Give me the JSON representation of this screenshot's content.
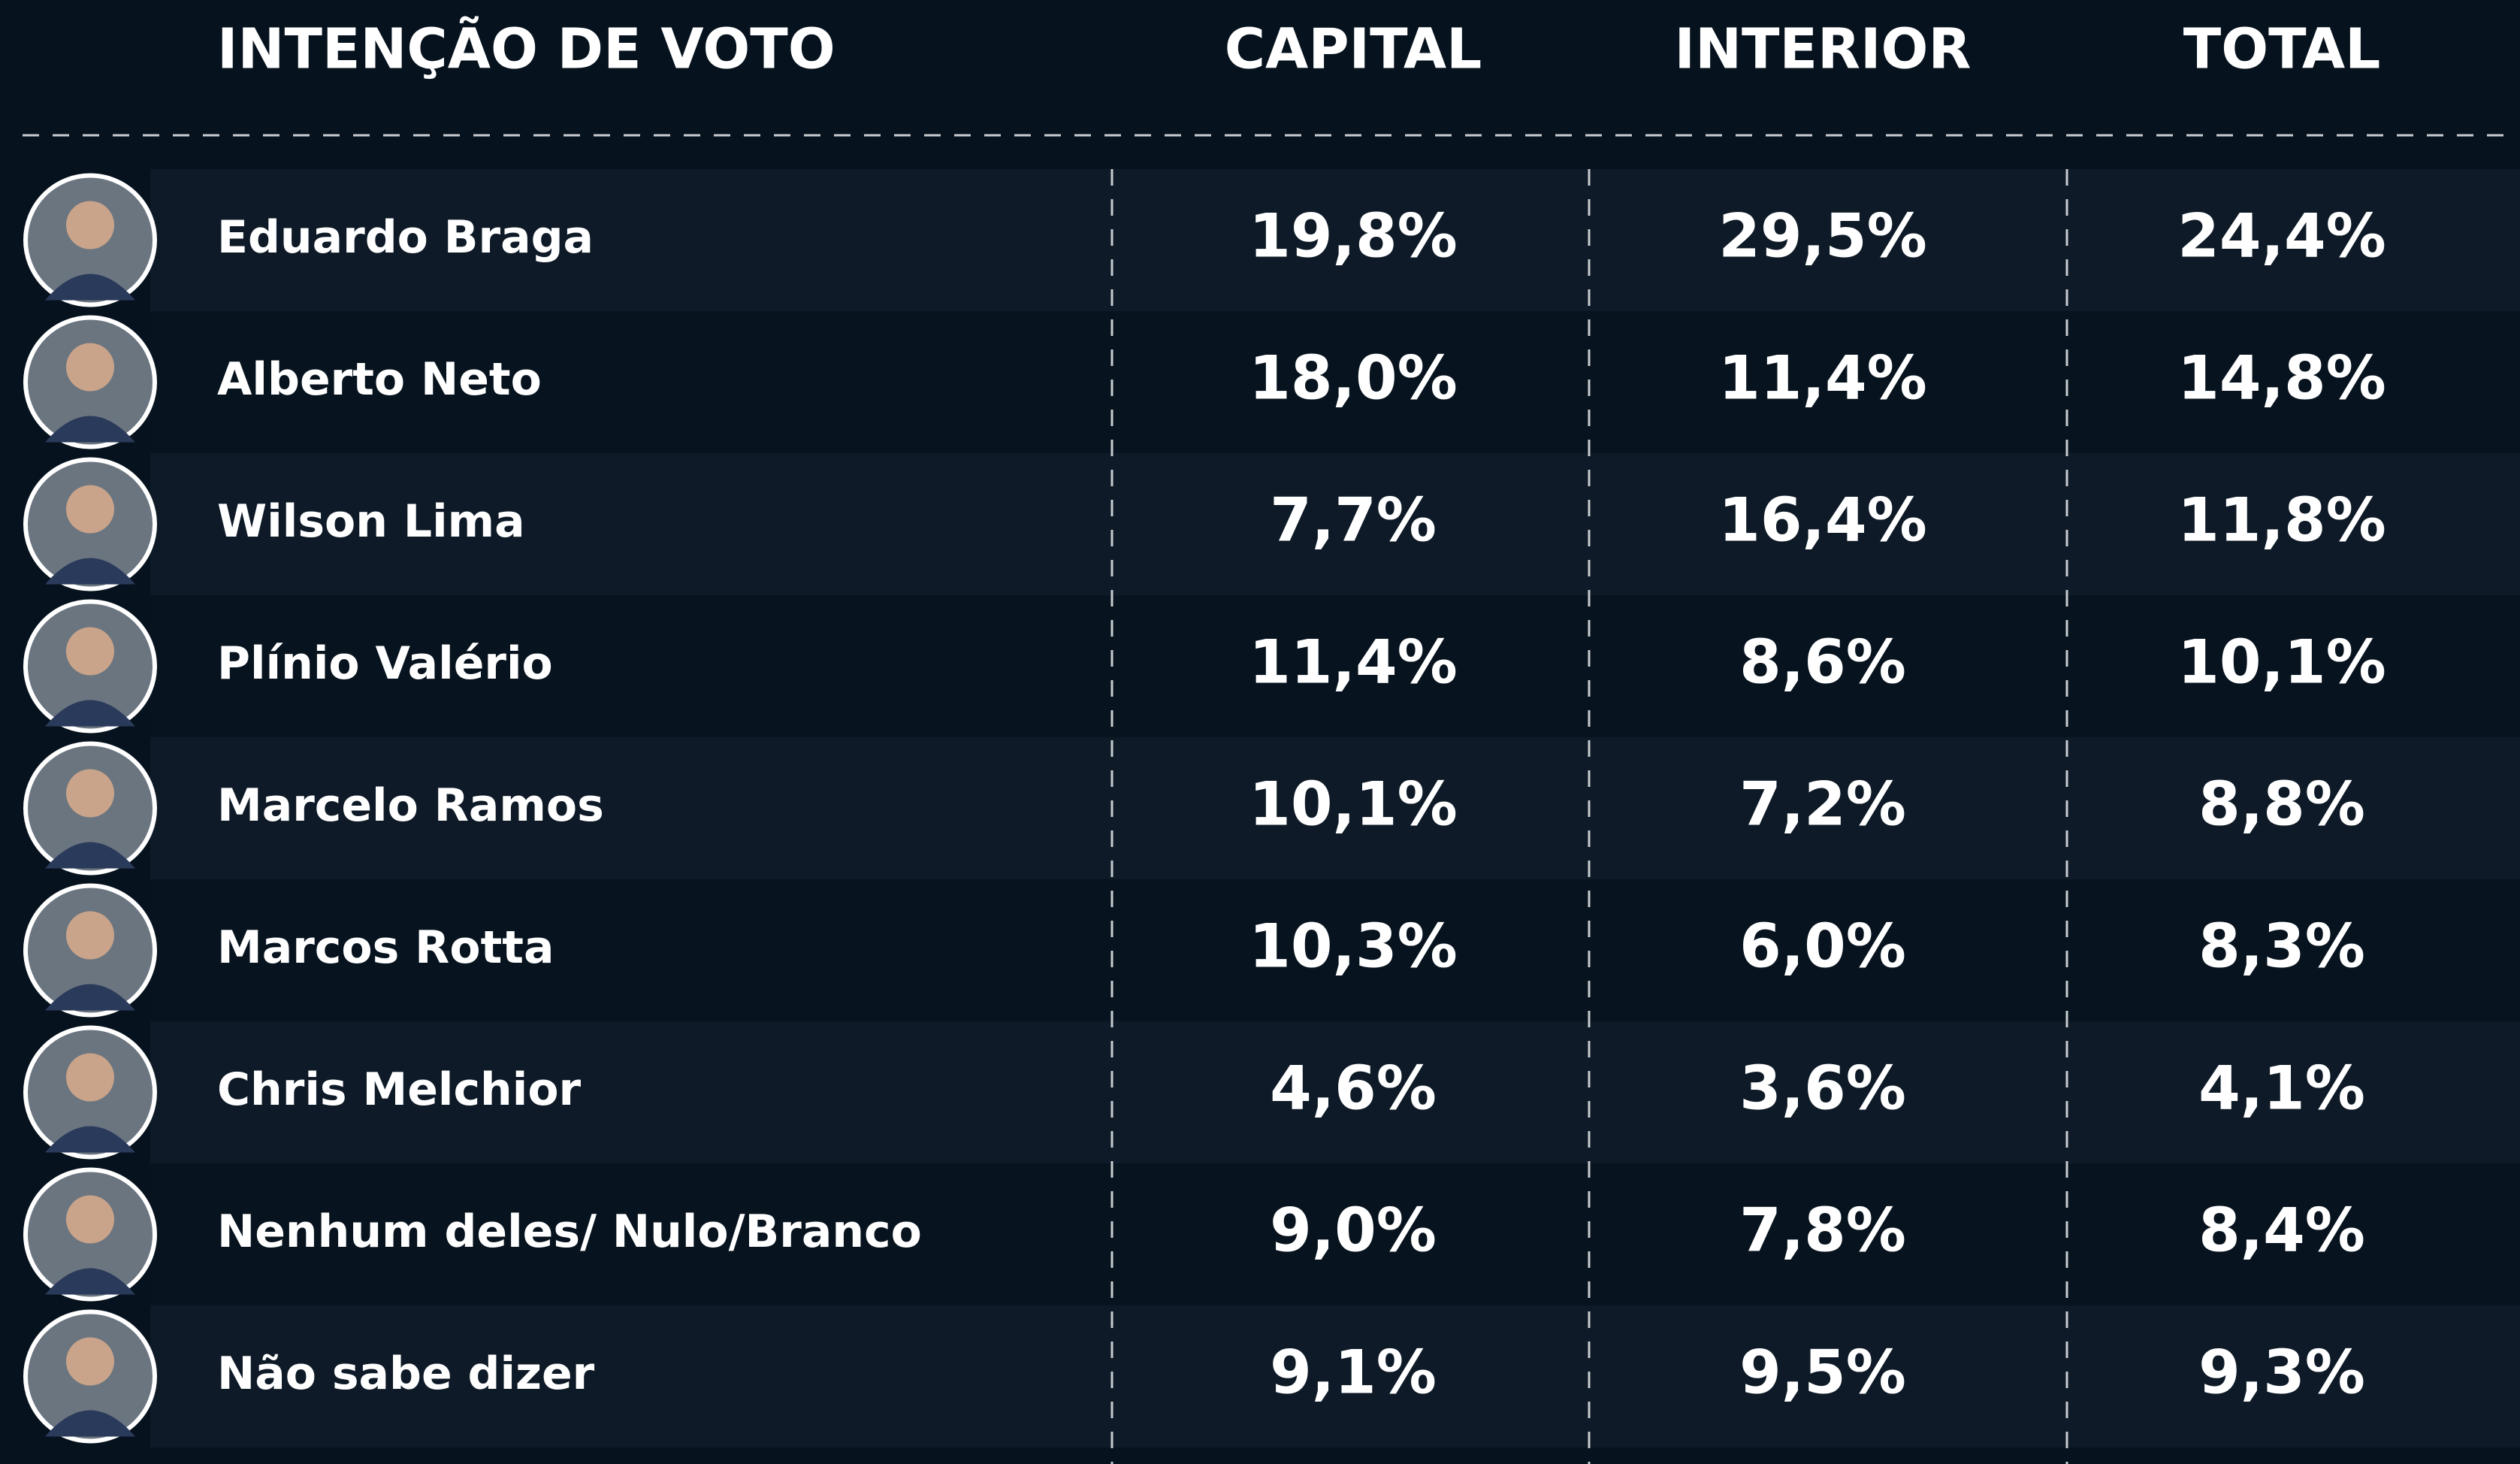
{
  "header": {
    "title": "INTENÇÃO DE VOTO",
    "columns": [
      "CAPITAL",
      "INTERIOR",
      "TOTAL"
    ]
  },
  "table": {
    "rows": [
      {
        "name": "Eduardo Braga",
        "values": [
          "19,8%",
          "29,5%",
          "24,4%"
        ]
      },
      {
        "name": "Alberto Neto",
        "values": [
          "18,0%",
          "11,4%",
          "14,8%"
        ]
      },
      {
        "name": "Wilson Lima",
        "values": [
          "7,7%",
          "16,4%",
          "11,8%"
        ]
      },
      {
        "name": "Plínio Valério",
        "values": [
          "11,4%",
          "8,6%",
          "10,1%"
        ]
      },
      {
        "name": "Marcelo Ramos",
        "values": [
          "10,1%",
          "7,2%",
          "8,8%"
        ]
      },
      {
        "name": "Marcos Rotta",
        "values": [
          "10,3%",
          "6,0%",
          "8,3%"
        ]
      },
      {
        "name": "Chris Melchior",
        "values": [
          "4,6%",
          "3,6%",
          "4,1%"
        ]
      },
      {
        "name": "Nenhum deles/ Nulo/Branco",
        "values": [
          "9,0%",
          "7,8%",
          "8,4%"
        ]
      },
      {
        "name": "Não sabe dizer",
        "values": [
          "9,1%",
          "9,5%",
          "9,3%"
        ]
      }
    ]
  }
}
